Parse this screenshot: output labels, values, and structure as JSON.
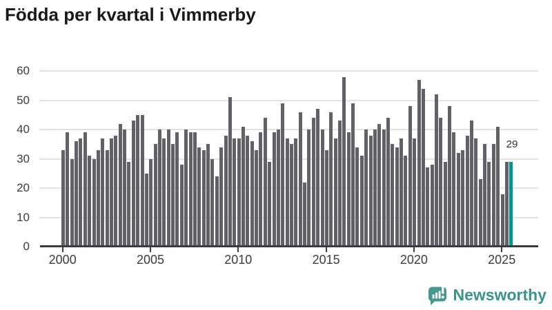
{
  "title": "Födda per kvartal i Vimmerby",
  "branding": {
    "name": "Newsworthy",
    "icon": "bar-chart-speech-bubble-icon"
  },
  "colors": {
    "bar": "#616167",
    "highlight": "#009690",
    "grid": "#e3e3e3",
    "axis": "#3b3b3b",
    "title": "#191919",
    "brand": "#3d928c"
  },
  "chart_data": {
    "type": "bar",
    "title": "Födda per kvartal i Vimmerby",
    "unit": "births per quarter",
    "start_period": "2000-Q1",
    "end_period": "2025-Q3",
    "x_tick_labels": [
      "2000",
      "2005",
      "2010",
      "2015",
      "2020",
      "2025"
    ],
    "y_ticks": [
      0,
      10,
      20,
      30,
      40,
      50,
      60
    ],
    "ylim": [
      0,
      62
    ],
    "grid": true,
    "values": [
      33,
      39,
      30,
      36,
      37,
      39,
      31,
      30,
      33,
      37,
      33,
      37,
      38,
      42,
      40,
      29,
      43,
      45,
      45,
      25,
      30,
      35,
      40,
      37,
      40,
      35,
      39,
      28,
      40,
      39,
      39,
      34,
      33,
      35,
      30,
      24,
      34,
      38,
      51,
      37,
      37,
      41,
      38,
      36,
      33,
      39,
      44,
      29,
      39,
      40,
      49,
      37,
      35,
      37,
      46,
      22,
      40,
      44,
      47,
      40,
      33,
      46,
      37,
      43,
      58,
      39,
      49,
      34,
      31,
      40,
      38,
      40,
      42,
      40,
      44,
      35,
      34,
      37,
      31,
      48,
      37,
      57,
      54,
      27,
      28,
      52,
      44,
      29,
      48,
      39,
      32,
      33,
      38,
      43,
      37,
      23,
      35,
      29,
      35,
      41,
      18,
      29,
      29
    ],
    "highlight_last": true,
    "last_value_label": "29"
  }
}
